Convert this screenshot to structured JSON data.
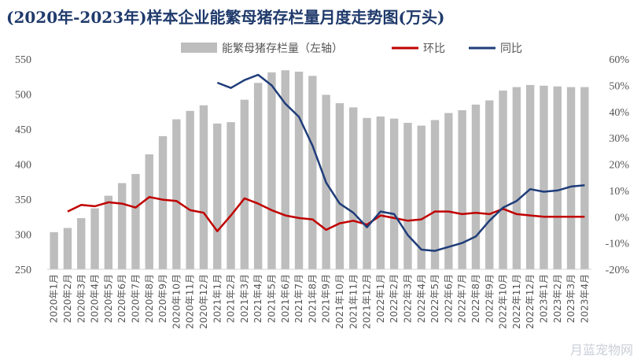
{
  "title": "(2020年-2023年)样本企业能繁母猪存栏量月度走势图(万头)",
  "watermark": "月蓝宠物网",
  "colors": {
    "bar": "#bdbdbd",
    "mom": "#c00000",
    "yoy": "#1f3d7a",
    "text": "#555555",
    "title": "#1f3a6b"
  },
  "chart_data": {
    "type": "bar+line",
    "categories": [
      "2020年1月",
      "2020年2月",
      "2020年3月",
      "2020年4月",
      "2020年5月",
      "2020年6月",
      "2020年7月",
      "2020年8月",
      "2020年9月",
      "2020年10月",
      "2020年11月",
      "2020年12月",
      "2021年1月",
      "2021年2月",
      "2021年3月",
      "2021年4月",
      "2021年5月",
      "2021年6月",
      "2021年7月",
      "2021年8月",
      "2021年9月",
      "2021年10月",
      "2021年11月",
      "2021年12月",
      "2022年1月",
      "2022年2月",
      "2022年3月",
      "2022年4月",
      "2022年5月",
      "2022年6月",
      "2022年7月",
      "2022年8月",
      "2022年9月",
      "2022年10月",
      "2022年11月",
      "2022年12月",
      "2023年1月",
      "2023年2月",
      "2023年3月",
      "2023年4月"
    ],
    "left_axis": {
      "min": 250,
      "max": 550,
      "ticks": [
        250,
        300,
        350,
        400,
        450,
        500,
        550
      ]
    },
    "right_axis": {
      "min": -20,
      "max": 60,
      "ticks": [
        -20,
        -10,
        0,
        10,
        20,
        30,
        40,
        50,
        60
      ],
      "ticks_label": [
        "-20%",
        "-10%",
        "0%",
        "10%",
        "20%",
        "30%",
        "40%",
        "50%",
        "60%"
      ]
    },
    "legend_position": "top-center",
    "series": [
      {
        "name": "能繁母猪存栏量（左轴）",
        "type": "bar",
        "axis": "left",
        "values": [
          303,
          309,
          323,
          337,
          355,
          373,
          386,
          414,
          440,
          464,
          476,
          484,
          458,
          460,
          492,
          516,
          531,
          534,
          532,
          526,
          499,
          487,
          481,
          466,
          468,
          465,
          459,
          455,
          463,
          473,
          477,
          485,
          491,
          505,
          510,
          513,
          512,
          511,
          510,
          510
        ]
      },
      {
        "name": "环比",
        "type": "line",
        "axis": "right",
        "values": [
          null,
          2.0,
          4.5,
          4.0,
          5.5,
          5.0,
          3.5,
          7.5,
          6.5,
          6.0,
          2.5,
          1.5,
          -5.5,
          0.5,
          7.0,
          5.0,
          2.5,
          0.5,
          -0.5,
          -1.0,
          -5.0,
          -2.5,
          -1.5,
          -3.0,
          0.5,
          -0.5,
          -1.5,
          -1.0,
          2.0,
          2.0,
          1.0,
          1.5,
          1.0,
          3.0,
          1.0,
          0.5,
          0.0,
          0.0,
          0.0,
          0.0
        ]
      },
      {
        "name": "同比",
        "type": "line",
        "axis": "right",
        "values": [
          null,
          null,
          null,
          null,
          null,
          null,
          null,
          null,
          null,
          null,
          null,
          null,
          51.0,
          49.0,
          52.0,
          54.0,
          50.0,
          43.0,
          38.0,
          27.0,
          13.0,
          5.0,
          1.5,
          -4.0,
          2.0,
          1.0,
          -7.0,
          -12.5,
          -13.0,
          -11.5,
          -10.0,
          -7.5,
          -1.5,
          3.5,
          6.0,
          10.5,
          9.5,
          10.0,
          11.5,
          12.0
        ]
      }
    ]
  }
}
